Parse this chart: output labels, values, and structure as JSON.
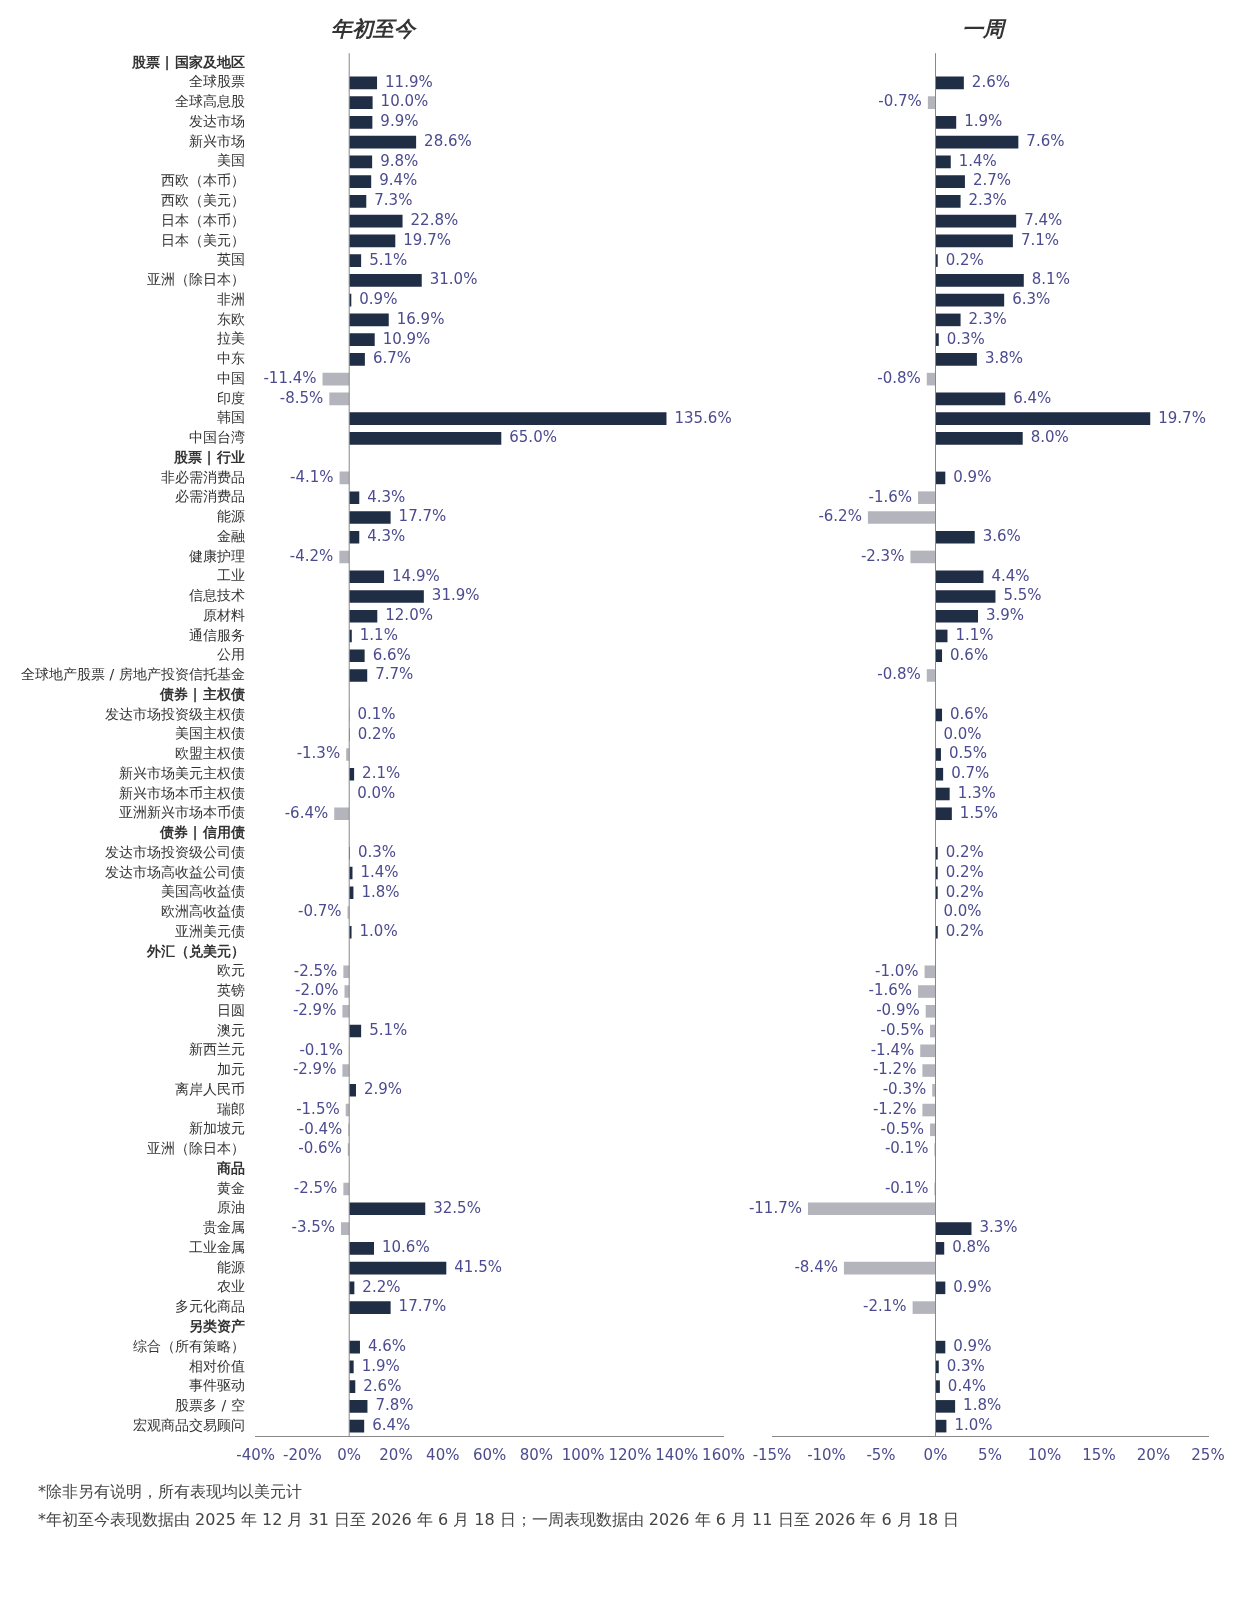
{
  "chart_data": [
    {
      "type": "bar",
      "orientation": "horizontal",
      "title": "年初至今",
      "categories": [
        "股票 | 国家及地区",
        "全球股票",
        "全球高息股",
        "发达市场",
        "新兴市场",
        "美国",
        "西欧（本币）",
        "西欧（美元）",
        "日本（本币）",
        "日本（美元）",
        "英国",
        "亚洲（除日本）",
        "非洲",
        "东欧",
        "拉美",
        "中东",
        "中国",
        "印度",
        "韩国",
        "中国台湾",
        "股票 | 行业",
        "非必需消费品",
        "必需消费品",
        "能源",
        "金融",
        "健康护理",
        "工业",
        "信息技术",
        "原材料",
        "通信服务",
        "公用",
        "全球地产股票 / 房地产投资信托基金",
        "债券 | 主权债",
        "发达市场投资级主权债",
        "美国主权债",
        "欧盟主权债",
        "新兴市场美元主权债",
        "新兴市场本币主权债",
        "亚洲新兴市场本币债",
        "债券 | 信用债",
        "发达市场投资级公司债",
        "发达市场高收益公司债",
        "美国高收益债",
        "欧洲高收益债",
        "亚洲美元债",
        "外汇（兑美元）",
        "欧元",
        "英镑",
        "日圆",
        "澳元",
        "新西兰元",
        "加元",
        "离岸人民币",
        "瑞郎",
        "新加坡元",
        "亚洲（除日本）",
        "商品",
        "黄金",
        "原油",
        "贵金属",
        "工业金属",
        "能源",
        "农业",
        "多元化商品",
        "另类资产",
        "综合（所有策略）",
        "相对价值",
        "事件驱动",
        "股票多 / 空",
        "宏观商品交易顾问"
      ],
      "values": [
        null,
        11.9,
        10.0,
        9.9,
        28.6,
        9.8,
        9.4,
        7.3,
        22.8,
        19.7,
        5.1,
        31.0,
        0.9,
        16.9,
        10.9,
        6.7,
        -11.4,
        -8.5,
        135.6,
        65.0,
        null,
        -4.1,
        4.3,
        17.7,
        4.3,
        -4.2,
        14.9,
        31.9,
        12.0,
        1.1,
        6.6,
        7.7,
        null,
        0.1,
        0.2,
        -1.3,
        2.1,
        0.0,
        -6.4,
        null,
        0.3,
        1.4,
        1.8,
        -0.7,
        1.0,
        null,
        -2.5,
        -2.0,
        -2.9,
        5.1,
        -0.1,
        -2.9,
        2.9,
        -1.5,
        -0.4,
        -0.6,
        null,
        -2.5,
        32.5,
        -3.5,
        10.6,
        41.5,
        2.2,
        17.7,
        null,
        4.6,
        1.9,
        2.6,
        7.8,
        6.4
      ],
      "value_labels": [
        null,
        "11.9%",
        "10.0%",
        "9.9%",
        "28.6%",
        "9.8%",
        "9.4%",
        "7.3%",
        "22.8%",
        "19.7%",
        "5.1%",
        "31.0%",
        "0.9%",
        "16.9%",
        "10.9%",
        "6.7%",
        "-11.4%",
        "-8.5%",
        "135.6%",
        "65.0%",
        null,
        "-4.1%",
        "4.3%",
        "17.7%",
        "4.3%",
        "-4.2%",
        "14.9%",
        "31.9%",
        "12.0%",
        "1.1%",
        "6.6%",
        "7.7%",
        null,
        "0.1%",
        "0.2%",
        "-1.3%",
        "2.1%",
        "0.0%",
        "-6.4%",
        null,
        "0.3%",
        "1.4%",
        "1.8%",
        "-0.7%",
        "1.0%",
        null,
        "-2.5%",
        "-2.0%",
        "-2.9%",
        "5.1%",
        "-0.1%",
        "-2.9%",
        "2.9%",
        "-1.5%",
        "-0.4%",
        "-0.6%",
        null,
        "-2.5%",
        "32.5%",
        "-3.5%",
        "10.6%",
        "41.5%",
        "2.2%",
        "17.7%",
        null,
        "4.6%",
        "1.9%",
        "2.6%",
        "7.8%",
        "6.4%"
      ],
      "colors": [
        "#1f2d45",
        "#1f2d45",
        "#1f2d45",
        "#1f2d45",
        "#1f2d45",
        "#1f2d45",
        "#1f2d45",
        "#1f2d45",
        "#1f2d45",
        "#1f2d45",
        "#1f2d45",
        "#1f2d45",
        "#1f2d45",
        "#1f2d45",
        "#1f2d45",
        "#1f2d45",
        "#b4b4bc",
        "#b4b4bc",
        "#1f2d45",
        "#1f2d45",
        "#1f2d45",
        "#b4b4bc",
        "#1f2d45",
        "#1f2d45",
        "#1f2d45",
        "#b4b4bc",
        "#1f2d45",
        "#1f2d45",
        "#1f2d45",
        "#1f2d45",
        "#1f2d45",
        "#1f2d45",
        "#1f2d45",
        "#1f2d45",
        "#1f2d45",
        "#b4b4bc",
        "#1f2d45",
        "#1f2d45",
        "#b4b4bc",
        "#1f2d45",
        "#1f2d45",
        "#1f2d45",
        "#1f2d45",
        "#b4b4bc",
        "#1f2d45",
        "#1f2d45",
        "#b4b4bc",
        "#b4b4bc",
        "#b4b4bc",
        "#1f2d45",
        "#b4b4bc",
        "#b4b4bc",
        "#1f2d45",
        "#b4b4bc",
        "#b4b4bc",
        "#b4b4bc",
        "#1f2d45",
        "#b4b4bc",
        "#1f2d45",
        "#b4b4bc",
        "#1f2d45",
        "#1f2d45",
        "#1f2d45",
        "#1f2d45",
        "#1f2d45",
        "#1f2d45",
        "#1f2d45",
        "#1f2d45",
        "#1f2d45",
        "#1f2d45"
      ],
      "xlim": [
        -40,
        160
      ],
      "xticks": [
        {
          "value": -40,
          "label": "-40%"
        },
        {
          "value": -20,
          "label": "-20%"
        },
        {
          "value": 0,
          "label": "0%"
        },
        {
          "value": 20,
          "label": "20%"
        },
        {
          "value": 40,
          "label": "40%"
        },
        {
          "value": 60,
          "label": "60%"
        },
        {
          "value": 80,
          "label": "80%"
        },
        {
          "value": 100,
          "label": "100%"
        },
        {
          "value": 120,
          "label": "120%"
        },
        {
          "value": 140,
          "label": "140%"
        },
        {
          "value": 160,
          "label": "160%"
        }
      ],
      "grid": false,
      "legend": false,
      "ref_lines": [
        {
          "axis": "x",
          "value": 0,
          "color": "#888888"
        }
      ],
      "annotations": [
        "*除非另有说明，所有表现均以美元计",
        "*年初至今表现数据由 2025 年 12 月 31 日至 2026 年 6 月 18 日；一周表现数据由 2026 年 6 月 11 日至 2026 年 6 月 18 日"
      ]
    },
    {
      "type": "bar",
      "orientation": "horizontal",
      "title": "一周",
      "categories": [
        null,
        null,
        null,
        null,
        null,
        null,
        null,
        null,
        null,
        null,
        null,
        null,
        null,
        null,
        null,
        null,
        null,
        null,
        null,
        null,
        null,
        null,
        null,
        null,
        null,
        null,
        null,
        null,
        null,
        null,
        null,
        null,
        null,
        null,
        null,
        null,
        null,
        null,
        null,
        null,
        null,
        null,
        null,
        null,
        null,
        null,
        null,
        null,
        null,
        null,
        null,
        null,
        null,
        null,
        null,
        null,
        null,
        null,
        null,
        null,
        null,
        null,
        null,
        null,
        null,
        null,
        null,
        null,
        null,
        null
      ],
      "values": [
        null,
        2.6,
        -0.7,
        1.9,
        7.6,
        1.4,
        2.7,
        2.3,
        7.4,
        7.1,
        0.2,
        8.1,
        6.3,
        2.3,
        0.3,
        3.8,
        -0.8,
        6.4,
        19.7,
        8.0,
        null,
        0.9,
        -1.6,
        -6.2,
        3.6,
        -2.3,
        4.4,
        5.5,
        3.9,
        1.1,
        0.6,
        -0.8,
        null,
        0.6,
        0.0,
        0.5,
        0.7,
        1.3,
        1.5,
        null,
        0.2,
        0.2,
        0.2,
        0.0,
        0.2,
        null,
        -1.0,
        -1.6,
        -0.9,
        -0.5,
        -1.4,
        -1.2,
        -0.3,
        -1.2,
        -0.5,
        -0.1,
        null,
        -0.1,
        -11.7,
        3.3,
        0.8,
        -8.4,
        0.9,
        -2.1,
        null,
        0.9,
        0.3,
        0.4,
        1.8,
        1.0
      ],
      "value_labels": [
        null,
        "2.6%",
        "-0.7%",
        "1.9%",
        "7.6%",
        "1.4%",
        "2.7%",
        "2.3%",
        "7.4%",
        "7.1%",
        "0.2%",
        "8.1%",
        "6.3%",
        "2.3%",
        "0.3%",
        "3.8%",
        "-0.8%",
        "6.4%",
        "19.7%",
        "8.0%",
        null,
        "0.9%",
        "-1.6%",
        "-6.2%",
        "3.6%",
        "-2.3%",
        "4.4%",
        "5.5%",
        "3.9%",
        "1.1%",
        "0.6%",
        "-0.8%",
        null,
        "0.6%",
        "0.0%",
        "0.5%",
        "0.7%",
        "1.3%",
        "1.5%",
        null,
        "0.2%",
        "0.2%",
        "0.2%",
        "0.0%",
        "0.2%",
        null,
        "-1.0%",
        "-1.6%",
        "-0.9%",
        "-0.5%",
        "-1.4%",
        "-1.2%",
        "-0.3%",
        "-1.2%",
        "-0.5%",
        "-0.1%",
        null,
        "-0.1%",
        "-11.7%",
        "3.3%",
        "0.8%",
        "-8.4%",
        "0.9%",
        "-2.1%",
        null,
        "0.9%",
        "0.3%",
        "0.4%",
        "1.8%",
        "1.0%"
      ],
      "colors": [
        "#1f2d45",
        "#1f2d45",
        "#b4b4bc",
        "#1f2d45",
        "#1f2d45",
        "#1f2d45",
        "#1f2d45",
        "#1f2d45",
        "#1f2d45",
        "#1f2d45",
        "#1f2d45",
        "#1f2d45",
        "#1f2d45",
        "#1f2d45",
        "#1f2d45",
        "#1f2d45",
        "#b4b4bc",
        "#1f2d45",
        "#1f2d45",
        "#1f2d45",
        "#1f2d45",
        "#1f2d45",
        "#b4b4bc",
        "#b4b4bc",
        "#1f2d45",
        "#b4b4bc",
        "#1f2d45",
        "#1f2d45",
        "#1f2d45",
        "#1f2d45",
        "#1f2d45",
        "#b4b4bc",
        "#1f2d45",
        "#1f2d45",
        "#1f2d45",
        "#1f2d45",
        "#1f2d45",
        "#1f2d45",
        "#1f2d45",
        "#1f2d45",
        "#1f2d45",
        "#1f2d45",
        "#1f2d45",
        "#1f2d45",
        "#1f2d45",
        "#1f2d45",
        "#b4b4bc",
        "#b4b4bc",
        "#b4b4bc",
        "#b4b4bc",
        "#b4b4bc",
        "#b4b4bc",
        "#b4b4bc",
        "#b4b4bc",
        "#b4b4bc",
        "#b4b4bc",
        "#1f2d45",
        "#b4b4bc",
        "#b4b4bc",
        "#1f2d45",
        "#1f2d45",
        "#b4b4bc",
        "#1f2d45",
        "#b4b4bc",
        "#1f2d45",
        "#1f2d45",
        "#1f2d45",
        "#1f2d45",
        "#1f2d45",
        "#1f2d45"
      ],
      "xlim": [
        -15,
        25
      ],
      "xticks": [
        {
          "value": -15,
          "label": "-15%"
        },
        {
          "value": -10,
          "label": "-10%"
        },
        {
          "value": -5,
          "label": "-5%"
        },
        {
          "value": 0,
          "label": "0%"
        },
        {
          "value": 5,
          "label": "5%"
        },
        {
          "value": 10,
          "label": "10%"
        },
        {
          "value": 15,
          "label": "15%"
        },
        {
          "value": 20,
          "label": "20%"
        },
        {
          "value": 25,
          "label": "25%"
        }
      ],
      "grid": false,
      "legend": false,
      "ref_lines": [
        {
          "axis": "x",
          "value": 0,
          "color": "#888888"
        }
      ]
    }
  ]
}
